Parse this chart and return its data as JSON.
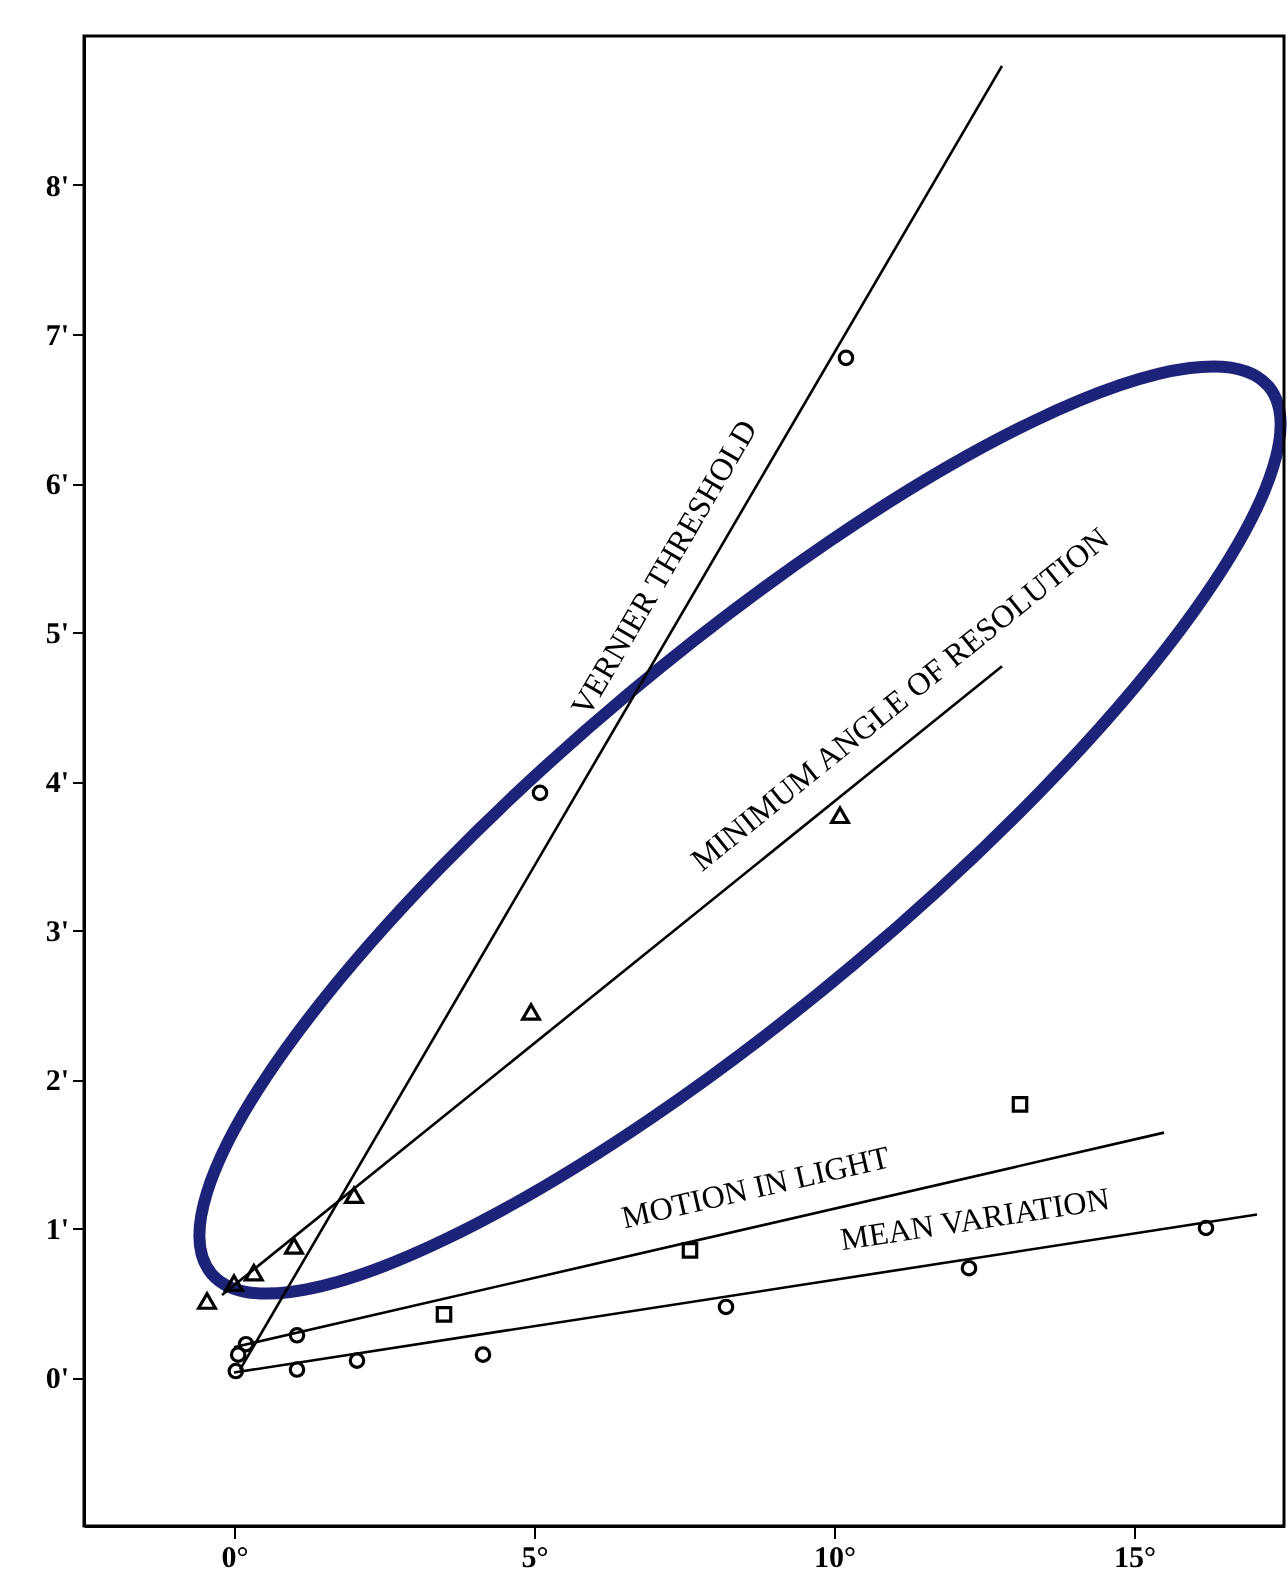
{
  "chart_data": {
    "type": "scatter",
    "xlim": [
      -2.5,
      17.5
    ],
    "ylim": [
      -1,
      9
    ],
    "xticks": [
      {
        "value": 0,
        "label": "0°"
      },
      {
        "value": 5,
        "label": "5°"
      },
      {
        "value": 10,
        "label": "10°"
      },
      {
        "value": 15,
        "label": "15°"
      }
    ],
    "yticks": [
      {
        "value": 0,
        "label": "0'"
      },
      {
        "value": 1,
        "label": "1'"
      },
      {
        "value": 2,
        "label": "2'"
      },
      {
        "value": 3,
        "label": "3'"
      },
      {
        "value": 4,
        "label": "4'"
      },
      {
        "value": 5,
        "label": "5'"
      },
      {
        "value": 6,
        "label": "6'"
      },
      {
        "value": 7,
        "label": "7'"
      },
      {
        "value": 8,
        "label": "8'"
      }
    ],
    "grid": false,
    "series": [
      {
        "type": "line",
        "name": "VERNIER THRESHOLD",
        "color": "#000000",
        "x": [
          0.1,
          12.8
        ],
        "values": [
          0.05,
          8.8
        ]
      },
      {
        "type": "line",
        "name": "MINIMUM ANGLE OF RESOLUTION",
        "color": "#000000",
        "x": [
          -0.2,
          12.8
        ],
        "values": [
          0.55,
          4.77
        ]
      },
      {
        "type": "line",
        "name": "MOTION IN LIGHT",
        "color": "#000000",
        "x": [
          0,
          15.5
        ],
        "values": [
          0.2,
          1.64
        ]
      },
      {
        "type": "line",
        "name": "MEAN VARIATION",
        "color": "#000000",
        "x": [
          0,
          17.05
        ],
        "values": [
          0.03,
          1.09
        ]
      },
      {
        "marker": "circle",
        "color": "#000000",
        "x": [
          5.1,
          10.2
        ],
        "values": [
          3.92,
          6.84
        ]
      },
      {
        "marker": "triangle",
        "color": "#000000",
        "x": [
          -0.45,
          0,
          0.33,
          1.0,
          2.0,
          4.95,
          10.1
        ],
        "values": [
          0.51,
          0.63,
          0.7,
          0.88,
          1.22,
          2.45,
          3.77
        ]
      },
      {
        "marker": "square",
        "color": "#000000",
        "x": [
          3.5,
          7.6,
          13.1
        ],
        "values": [
          0.42,
          0.85,
          1.83
        ]
      },
      {
        "marker": "circle",
        "color": "#000000",
        "x": [
          0.03,
          0.07,
          0.2,
          1.05,
          1.05,
          2.05,
          4.15,
          8.2,
          12.25,
          16.2
        ],
        "values": [
          0.04,
          0.15,
          0.22,
          0.28,
          0.05,
          0.11,
          0.15,
          0.47,
          0.73,
          1.0
        ]
      }
    ]
  }
}
